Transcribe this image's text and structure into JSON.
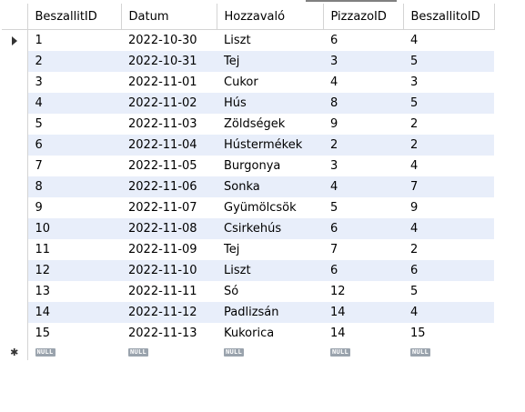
{
  "columns": [
    "BeszallitID",
    "Datum",
    "Hozzavaló",
    "PizzazoID",
    "BeszallitoID"
  ],
  "rows": [
    [
      "1",
      "2022-10-30",
      "Liszt",
      "6",
      "4"
    ],
    [
      "2",
      "2022-10-31",
      "Tej",
      "3",
      "5"
    ],
    [
      "3",
      "2022-11-01",
      "Cukor",
      "4",
      "3"
    ],
    [
      "4",
      "2022-11-02",
      "Hús",
      "8",
      "5"
    ],
    [
      "5",
      "2022-11-03",
      "Zöldségek",
      "9",
      "2"
    ],
    [
      "6",
      "2022-11-04",
      "Hústermékek",
      "2",
      "2"
    ],
    [
      "7",
      "2022-11-05",
      "Burgonya",
      "3",
      "4"
    ],
    [
      "8",
      "2022-11-06",
      "Sonka",
      "4",
      "7"
    ],
    [
      "9",
      "2022-11-07",
      "Gyümölcsök",
      "5",
      "9"
    ],
    [
      "10",
      "2022-11-08",
      "Csirkehús",
      "6",
      "4"
    ],
    [
      "11",
      "2022-11-09",
      "Tej",
      "7",
      "2"
    ],
    [
      "12",
      "2022-11-10",
      "Liszt",
      "6",
      "6"
    ],
    [
      "13",
      "2022-11-11",
      "Só",
      "12",
      "5"
    ],
    [
      "14",
      "2022-11-12",
      "Padlizsán",
      "14",
      "4"
    ],
    [
      "15",
      "2022-11-13",
      "Kukorica",
      "14",
      "15"
    ]
  ],
  "new_row_placeholder": "NULL",
  "current_row_indicator_icon": "row-pointer-icon",
  "new_row_indicator_icon": "new-row-star-icon",
  "colors": {
    "alt_row": "#e8eefa",
    "grid_line": "#d4d4d4",
    "null_badge": "#9aa3ad"
  }
}
